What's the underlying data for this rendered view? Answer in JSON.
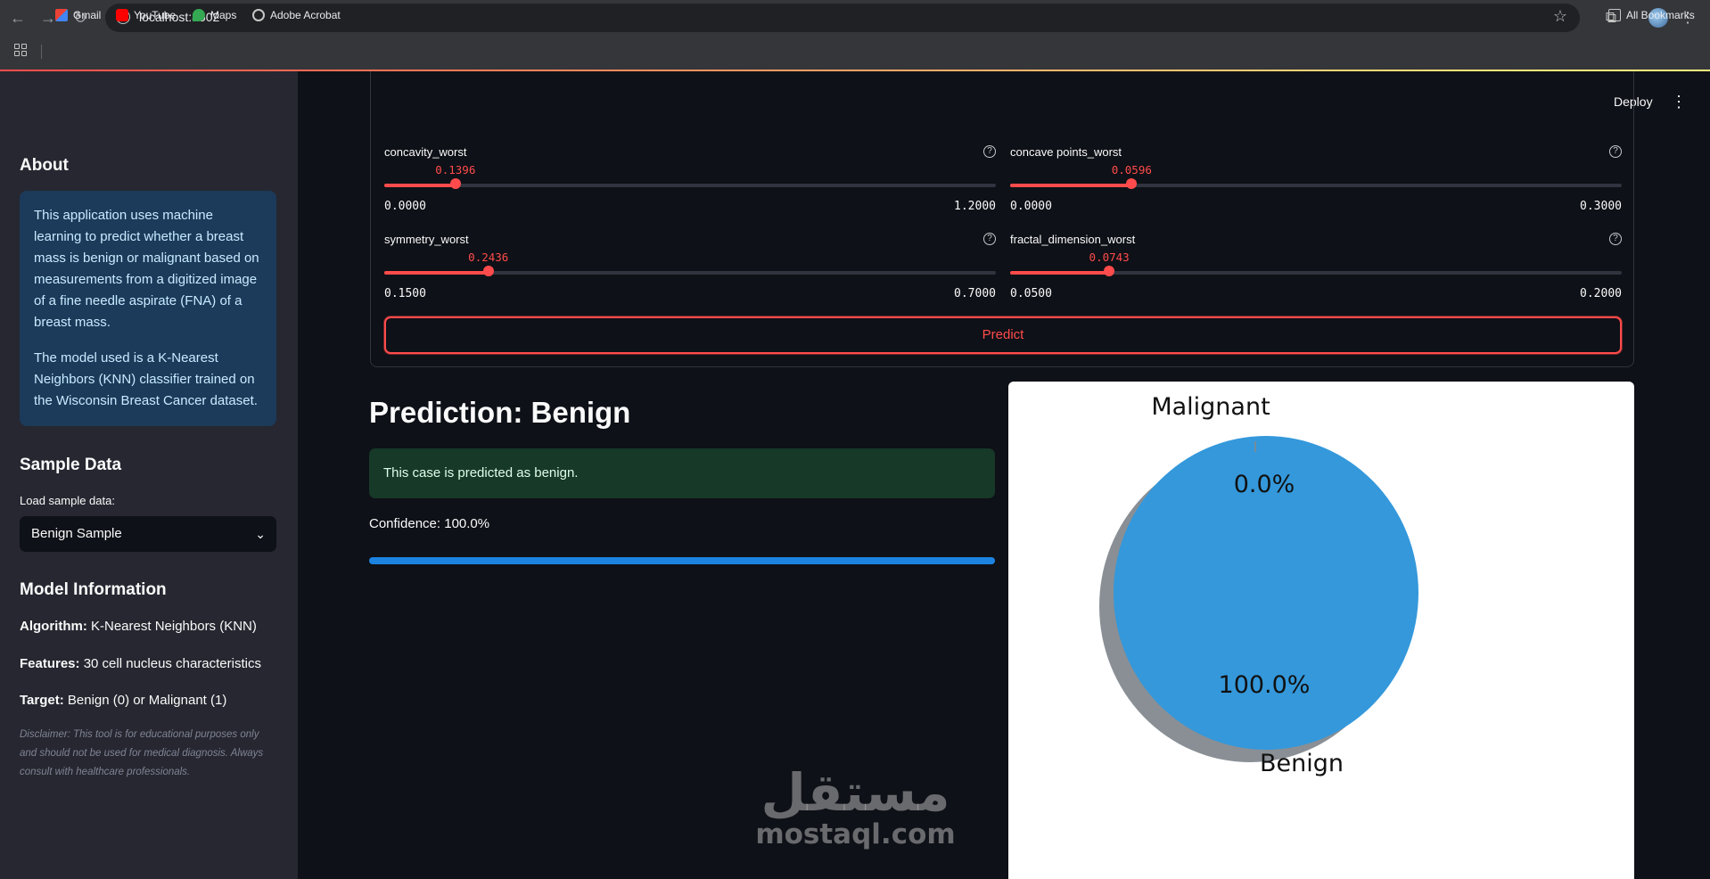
{
  "browser": {
    "url": "localhost:8502",
    "bookmarks": [
      "Gmail",
      "YouTube",
      "Maps",
      "Adobe Acrobat"
    ],
    "all_bookmarks": "All Bookmarks"
  },
  "header": {
    "deploy_label": "Deploy"
  },
  "sidebar": {
    "about_title": "About",
    "about_p1": "This application uses machine learning to predict whether a breast mass is benign or malignant based on measurements from a digitized image of a fine needle aspirate (FNA) of a breast mass.",
    "about_p2": "The model used is a K-Nearest Neighbors (KNN) classifier trained on the Wisconsin Breast Cancer dataset.",
    "sample_title": "Sample Data",
    "sample_label": "Load sample data:",
    "sample_value": "Benign Sample",
    "model_title": "Model Information",
    "algorithm_key": "Algorithm:",
    "algorithm_val": "K-Nearest Neighbors (KNN)",
    "features_key": "Features:",
    "features_val": "30 cell nucleus characteristics",
    "target_key": "Target:",
    "target_val": "Benign (0) or Malignant (1)",
    "disclaimer": "Disclaimer: This tool is for educational purposes only and should not be used for medical diagnosis. Always consult with healthcare professionals."
  },
  "sliders": [
    {
      "label": "concavity_worst",
      "value": "0.1396",
      "min": "0.0000",
      "max": "1.2000",
      "fraction": 0.1163
    },
    {
      "label": "concave points_worst",
      "value": "0.0596",
      "min": "0.0000",
      "max": "0.3000",
      "fraction": 0.1987
    },
    {
      "label": "symmetry_worst",
      "value": "0.2436",
      "min": "0.1500",
      "max": "0.7000",
      "fraction": 0.1702
    },
    {
      "label": "fractal_dimension_worst",
      "value": "0.0743",
      "min": "0.0500",
      "max": "0.2000",
      "fraction": 0.162
    }
  ],
  "predict_label": "Predict",
  "result": {
    "title": "Prediction: Benign",
    "message": "This case is predicted as benign.",
    "confidence": "Confidence: 100.0%",
    "confidence_value": 1.0
  },
  "chart_data": {
    "type": "pie",
    "categories": [
      "Malignant",
      "Benign"
    ],
    "values": [
      0.0,
      100.0
    ],
    "labels": [
      "0.0%",
      "100.0%"
    ],
    "colors": [
      "#e74c3c",
      "#3498db"
    ],
    "shadow": true
  },
  "watermark": {
    "arabic": "مستقل",
    "latin": "mostaql.com"
  }
}
